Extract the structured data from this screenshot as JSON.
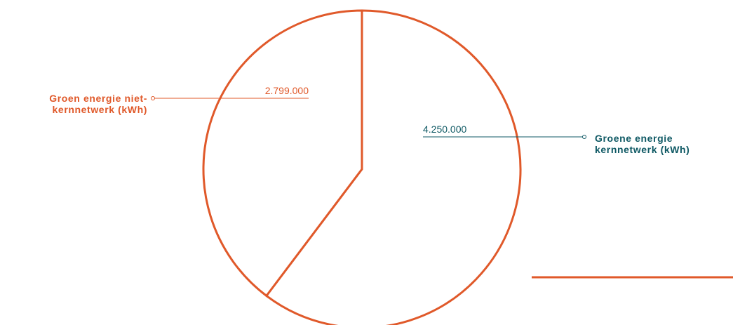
{
  "chart_data": {
    "type": "pie",
    "categories": [
      "Groene energie kernnetwerk (kWh)",
      "Groen energie niet-kernnetwerk (kWh)"
    ],
    "values": [
      4250000,
      2799000
    ],
    "value_labels": [
      "4.250.000",
      "2.799.000"
    ],
    "label_colors": [
      "#0f5964",
      "#e0592a"
    ],
    "stroke": "#e0592a"
  }
}
